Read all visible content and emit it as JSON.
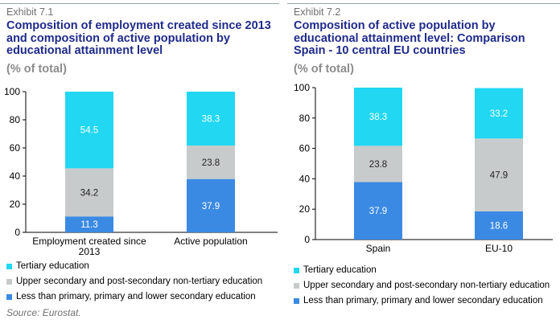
{
  "colors": {
    "tertiary": "#21d7f2",
    "upper_secondary": "#c7cbcc",
    "lower": "#3a8ae3",
    "title": "#1f2a8a"
  },
  "left": {
    "exhibit": "Exhibit 7.1",
    "title": "Composition of employment created since 2013 and composition of active population by educational attainment level",
    "subtitle": "(% of total)"
  },
  "right": {
    "exhibit": "Exhibit 7.2",
    "title": "Composition of active population by educational attainment level: Comparison Spain - 10 central EU countries",
    "subtitle": "(% of total)"
  },
  "legend": [
    "Tertiary education",
    "Upper secondary and post-secondary non-tertiary education",
    "Less than primary, primary and lower secondary education"
  ],
  "source": "Source: Eurostat.",
  "chart_data": [
    {
      "type": "bar",
      "stacked": true,
      "categories": [
        "Employment created since 2013",
        "Active population"
      ],
      "series": [
        {
          "name": "Less than primary, primary and lower secondary education",
          "values": [
            11.3,
            37.9
          ]
        },
        {
          "name": "Upper secondary and post-secondary non-tertiary education",
          "values": [
            34.2,
            23.8
          ]
        },
        {
          "name": "Tertiary education",
          "values": [
            54.5,
            38.3
          ]
        }
      ],
      "ylim": [
        0,
        100
      ],
      "yticks": [
        0,
        20,
        40,
        60,
        80,
        100
      ],
      "legend_position": "bottom"
    },
    {
      "type": "bar",
      "stacked": true,
      "categories": [
        "Spain",
        "EU-10"
      ],
      "series": [
        {
          "name": "Less than primary, primary and lower secondary education",
          "values": [
            37.9,
            18.6
          ]
        },
        {
          "name": "Upper secondary and post-secondary non-tertiary education",
          "values": [
            23.8,
            47.9
          ]
        },
        {
          "name": "Tertiary education",
          "values": [
            38.3,
            33.2
          ]
        }
      ],
      "ylim": [
        0,
        100
      ],
      "yticks": [
        0,
        20,
        40,
        60,
        80,
        100
      ],
      "legend_position": "bottom"
    }
  ]
}
